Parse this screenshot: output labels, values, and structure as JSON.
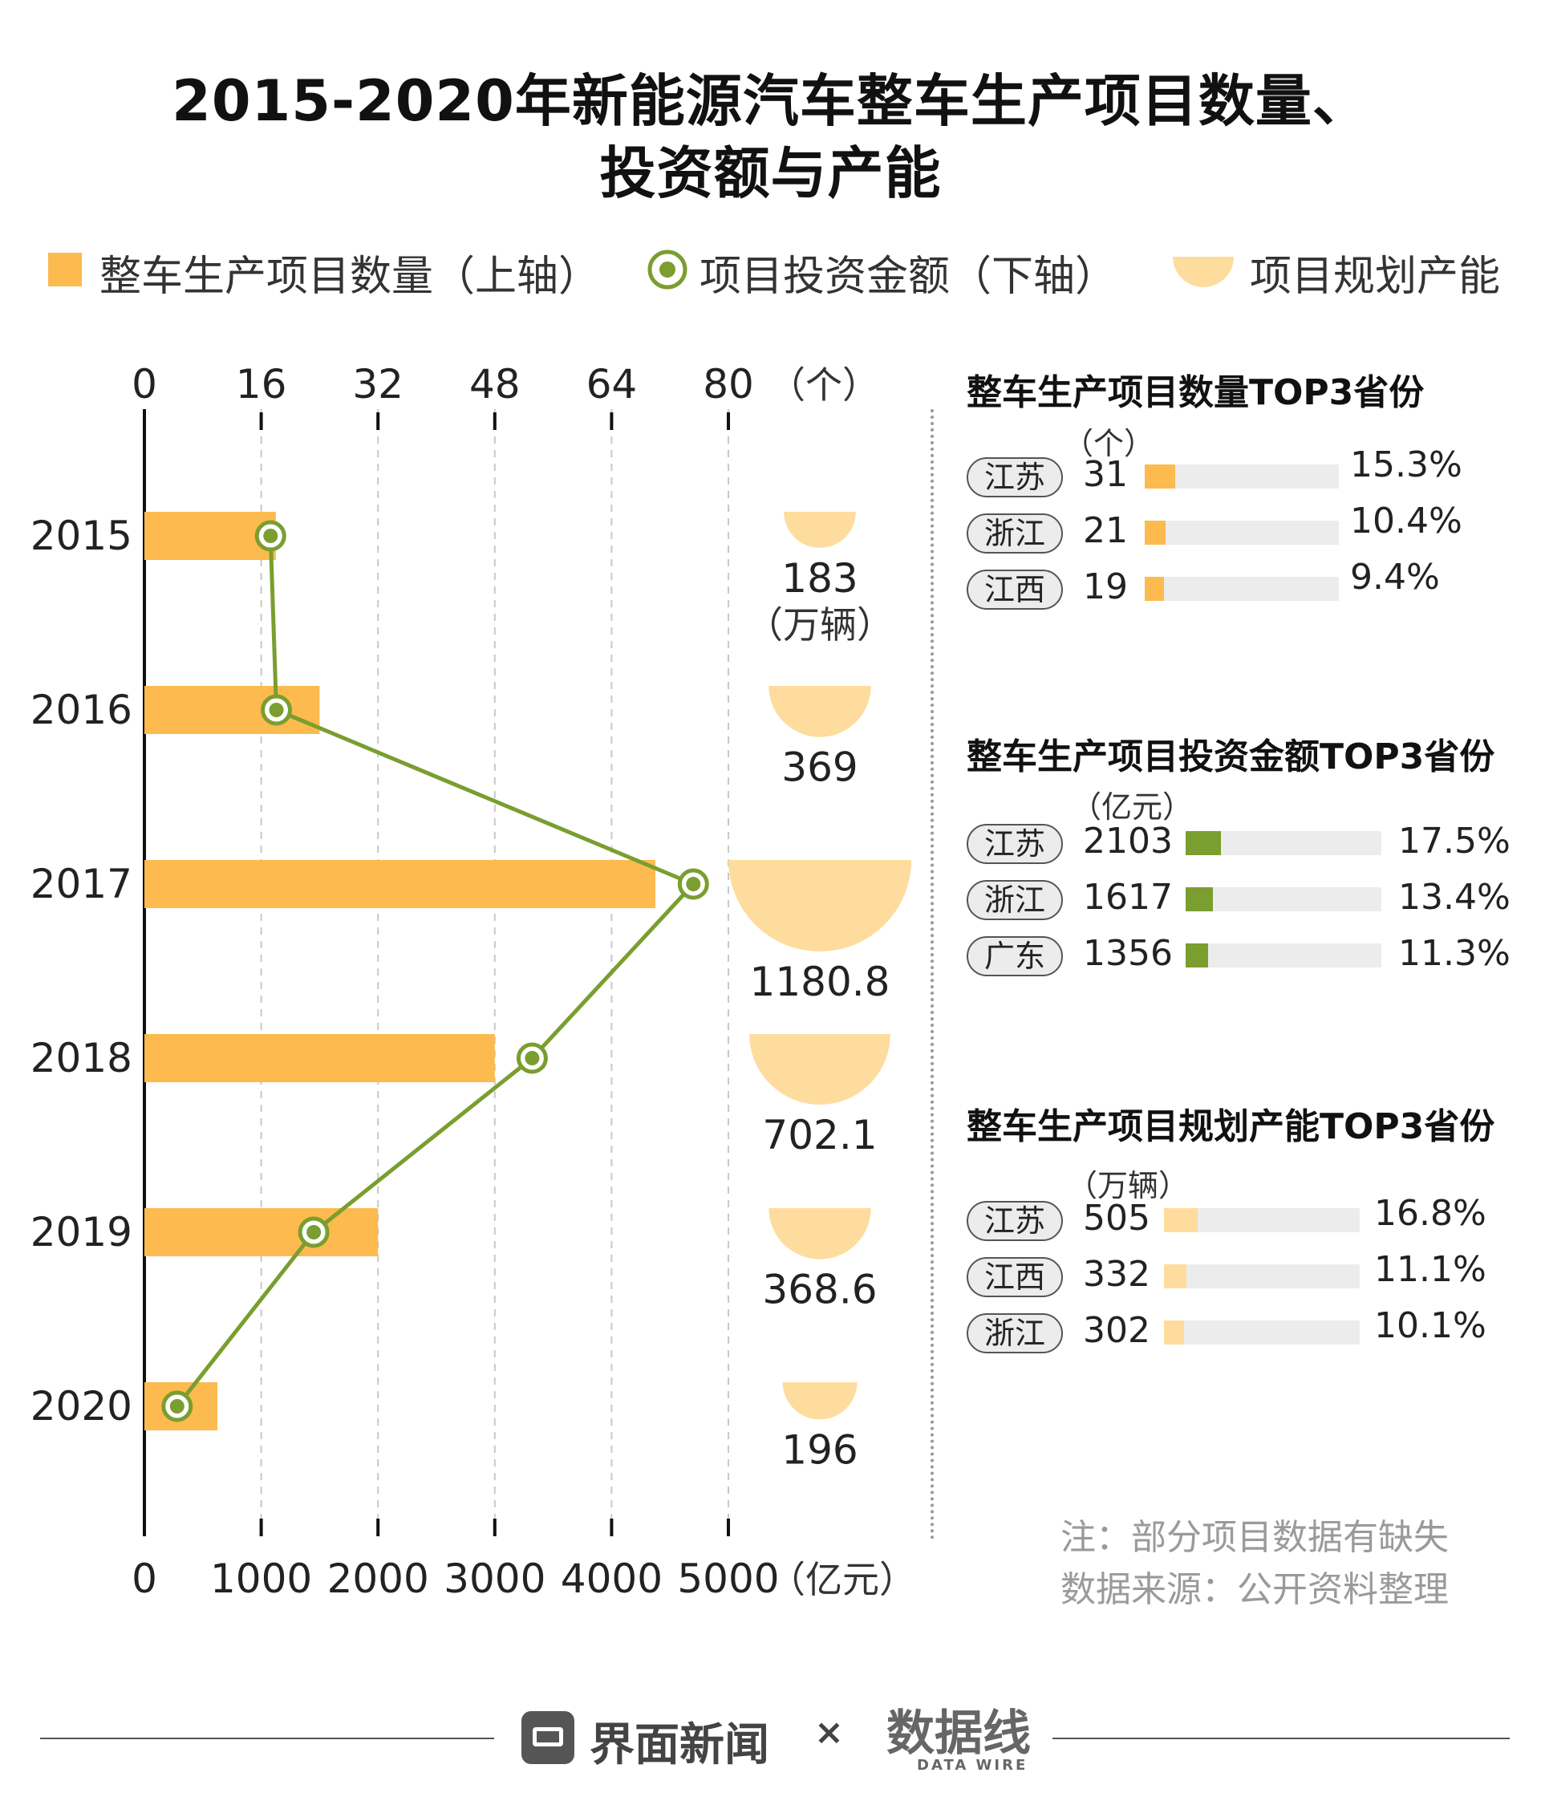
{
  "title": {
    "line1": "2015-2020年新能源汽车整车生产项目数量、",
    "line2": "投资额与产能"
  },
  "legend": {
    "count": "整车生产项目数量（上轴）",
    "investment": "项目投资金额（下轴）",
    "capacity": "项目规划产能"
  },
  "colors": {
    "bar": "#FDBA4E",
    "line": "#7A9E2F",
    "capacity": "#FEDC9E",
    "track": "#ECECEC"
  },
  "chart_data": {
    "type": "bar",
    "categories": [
      "2015",
      "2016",
      "2017",
      "2018",
      "2019",
      "2020"
    ],
    "top_axis": {
      "ticks": [
        "0",
        "16",
        "32",
        "48",
        "64",
        "80"
      ],
      "unit": "（个）",
      "range": [
        0,
        80
      ]
    },
    "bottom_axis": {
      "ticks": [
        "0",
        "1000",
        "2000",
        "3000",
        "4000",
        "5000"
      ],
      "unit": "（亿元）",
      "range": [
        0,
        5000
      ]
    },
    "series": [
      {
        "name": "整车生产项目数量",
        "axis": "top",
        "values": [
          18,
          24,
          70,
          48,
          32,
          10
        ]
      },
      {
        "name": "项目投资金额",
        "axis": "bottom",
        "values": [
          1080,
          1130,
          4700,
          3320,
          1450,
          280
        ]
      },
      {
        "name": "项目规划产能",
        "values": [
          183,
          369,
          1180.8,
          702.1,
          368.6,
          196
        ]
      }
    ],
    "capacity_labels": [
      "183",
      "369",
      "1180.8",
      "702.1",
      "368.6",
      "196"
    ],
    "capacity_unit": "（万辆）",
    "grid": "vertical dashed"
  },
  "panels": [
    {
      "title": "整车生产项目数量TOP3省份",
      "unit": "（个）",
      "color": "#FDBA4E",
      "rows": [
        {
          "province": "江苏",
          "value": "31",
          "share": 0.153,
          "pct": "15.3%"
        },
        {
          "province": "浙江",
          "value": "21",
          "share": 0.104,
          "pct": "10.4%"
        },
        {
          "province": "江西",
          "value": "19",
          "share": 0.094,
          "pct": "9.4%"
        }
      ]
    },
    {
      "title": "整车生产项目投资金额TOP3省份",
      "unit": "（亿元）",
      "color": "#7A9E2F",
      "rows": [
        {
          "province": "江苏",
          "value": "2103",
          "share": 0.175,
          "pct": "17.5%"
        },
        {
          "province": "浙江",
          "value": "1617",
          "share": 0.134,
          "pct": "13.4%"
        },
        {
          "province": "广东",
          "value": "1356",
          "share": 0.113,
          "pct": "11.3%"
        }
      ]
    },
    {
      "title": "整车生产项目规划产能TOP3省份",
      "unit": "（万辆）",
      "color": "#FEDC9E",
      "rows": [
        {
          "province": "江苏",
          "value": "505",
          "share": 0.168,
          "pct": "16.8%"
        },
        {
          "province": "江西",
          "value": "332",
          "share": 0.111,
          "pct": "11.1%"
        },
        {
          "province": "浙江",
          "value": "302",
          "share": 0.101,
          "pct": "10.1%"
        }
      ]
    }
  ],
  "notes": {
    "line1": "注：部分项目数据有缺失",
    "line2": "数据来源：公开资料整理"
  },
  "footer": {
    "brand1": "界面新闻",
    "times": "×",
    "brand2": "数据线",
    "brand2_sub": "DATA WIRE"
  }
}
